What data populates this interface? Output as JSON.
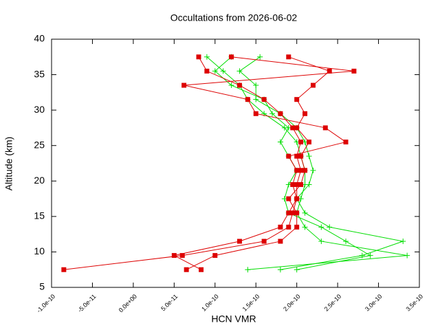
{
  "chart_data": {
    "type": "line",
    "title": "Occultations from 2026-06-02",
    "x_label": "HCN VMR",
    "y_label": "Altitude (km)",
    "xlim": [
      -1e-10,
      3.5e-10
    ],
    "xticks": [
      {
        "value": -1e-10,
        "label": "-1.0e-10"
      },
      {
        "value": -5e-11,
        "label": "-5.0e-11"
      },
      {
        "value": 0,
        "label": "0.0e+00"
      },
      {
        "value": 5e-11,
        "label": "5.0e-11"
      },
      {
        "value": 1e-10,
        "label": "1.0e-10"
      },
      {
        "value": 1.5e-10,
        "label": "1.5e-10"
      },
      {
        "value": 2e-10,
        "label": "2.0e-10"
      },
      {
        "value": 2.5e-10,
        "label": "2.5e-10"
      },
      {
        "value": 3e-10,
        "label": "3.0e-10"
      },
      {
        "value": 3.5e-10,
        "label": "3.5e-10"
      }
    ],
    "ylim": [
      5,
      40
    ],
    "yticks": [
      5,
      10,
      15,
      20,
      25,
      30,
      35,
      40
    ],
    "series": [
      {
        "color": "#00dd00",
        "marker": "plus",
        "x": [
          1.4e-10,
          3.35e-10,
          2.3e-10,
          2.1e-10,
          2e-10,
          2.05e-10,
          2.1e-10,
          2.1e-10,
          2.05e-10,
          2e-10,
          1.85e-10,
          1.6e-10,
          1.4e-10,
          1.3e-10,
          1.1e-10,
          9e-11
        ],
        "y": [
          7.5,
          9.5,
          11.5,
          13.5,
          15.5,
          17.5,
          19.5,
          21.5,
          23.5,
          25.5,
          27.5,
          29.5,
          31.5,
          33.5,
          35.5,
          37.5
        ]
      },
      {
        "color": "#00dd00",
        "marker": "plus",
        "x": [
          1.8e-10,
          2.8e-10,
          3.3e-10,
          2.4e-10,
          2.1e-10,
          2e-10,
          2.15e-10,
          2.2e-10,
          2.15e-10,
          2.1e-10,
          2e-10,
          1.8e-10,
          1.5e-10,
          1.5e-10,
          1.3e-10,
          1.55e-10
        ],
        "y": [
          7.5,
          9.5,
          11.5,
          13.5,
          15.5,
          17.5,
          19.5,
          21.5,
          23.5,
          25.5,
          27.5,
          29.5,
          31.5,
          33.5,
          35.5,
          37.5
        ]
      },
      {
        "color": "#00dd00",
        "marker": "plus",
        "x": [
          2e-10,
          2.9e-10,
          2.6e-10,
          2.3e-10,
          1.9e-10,
          1.85e-10,
          1.9e-10,
          2e-10,
          1.9e-10,
          1.8e-10,
          1.9e-10,
          1.7e-10,
          1.6e-10,
          1.2e-10,
          1e-10,
          1.2e-10
        ],
        "y": [
          7.5,
          9.5,
          11.5,
          13.5,
          15.5,
          17.5,
          19.5,
          21.5,
          23.5,
          25.5,
          27.5,
          29.5,
          31.5,
          33.5,
          35.5,
          37.5
        ]
      },
      {
        "color": "#dd0000",
        "marker": "square",
        "x": [
          -8.5e-11,
          6e-11,
          1.6e-10,
          1.9e-10,
          1.95e-10,
          2e-10,
          2e-10,
          2.05e-10,
          2e-10,
          2.05e-10,
          1.95e-10,
          1.8e-10,
          1.6e-10,
          1.3e-10,
          9e-11,
          8e-11
        ],
        "y": [
          7.5,
          9.5,
          11.5,
          13.5,
          15.5,
          17.5,
          19.5,
          21.5,
          23.5,
          25.5,
          27.5,
          29.5,
          31.5,
          33.5,
          35.5,
          37.5
        ]
      },
      {
        "color": "#dd0000",
        "marker": "square",
        "x": [
          6.5e-11,
          1e-10,
          1.8e-10,
          2e-10,
          2e-10,
          1.9e-10,
          2.05e-10,
          2.1e-10,
          2.05e-10,
          2.15e-10,
          2e-10,
          2.1e-10,
          2e-10,
          2.2e-10,
          2.4e-10,
          1.9e-10
        ],
        "y": [
          7.5,
          9.5,
          11.5,
          13.5,
          15.5,
          17.5,
          19.5,
          21.5,
          23.5,
          25.5,
          27.5,
          29.5,
          31.5,
          33.5,
          35.5,
          37.5
        ]
      },
      {
        "color": "#dd0000",
        "marker": "square",
        "x": [
          8.3e-11,
          5e-11,
          1.3e-10,
          1.8e-10,
          1.9e-10,
          2e-10,
          1.95e-10,
          2e-10,
          1.9e-10,
          2.6e-10,
          2.35e-10,
          1.5e-10,
          1.4e-10,
          6.2e-11,
          2.7e-10,
          1.2e-10
        ],
        "y": [
          7.5,
          9.5,
          11.5,
          13.5,
          15.5,
          17.5,
          19.5,
          21.5,
          23.5,
          25.5,
          27.5,
          29.5,
          31.5,
          33.5,
          35.5,
          37.5
        ]
      }
    ]
  }
}
